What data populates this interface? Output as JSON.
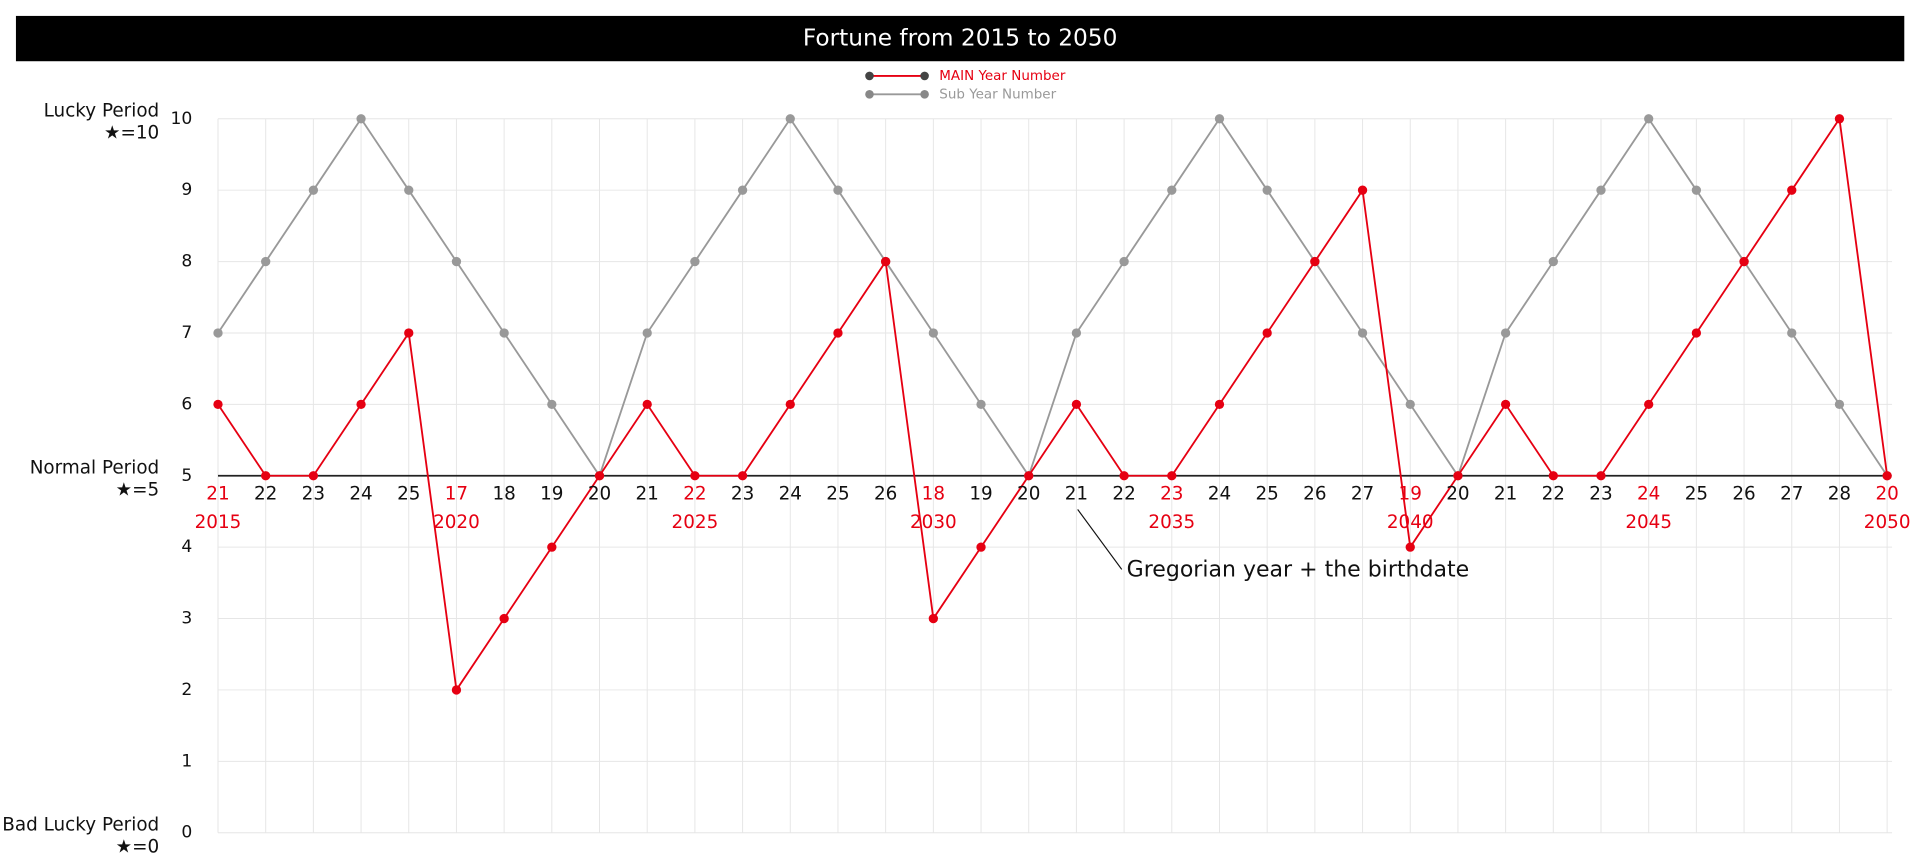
{
  "chart_data": {
    "type": "line",
    "title": "Fortune from 2015 to 2050",
    "categories": [
      "21",
      "22",
      "23",
      "24",
      "25",
      "17",
      "18",
      "19",
      "20",
      "21",
      "22",
      "23",
      "24",
      "25",
      "26",
      "18",
      "19",
      "20",
      "21",
      "22",
      "23",
      "24",
      "25",
      "26",
      "27",
      "19",
      "20",
      "21",
      "22",
      "23",
      "24",
      "25",
      "26",
      "27",
      "28",
      "20"
    ],
    "years": [
      "2015",
      null,
      null,
      null,
      null,
      "2020",
      null,
      null,
      null,
      null,
      "2025",
      null,
      null,
      null,
      null,
      "2030",
      null,
      null,
      null,
      null,
      "2035",
      null,
      null,
      null,
      null,
      "2040",
      null,
      null,
      null,
      null,
      "2045",
      null,
      null,
      null,
      null,
      "2050"
    ],
    "series": [
      {
        "name": "MAIN Year Number",
        "color": "#e60012",
        "values": [
          6,
          5,
          5,
          6,
          7,
          2,
          3,
          4,
          5,
          6,
          5,
          5,
          6,
          7,
          8,
          3,
          4,
          5,
          6,
          5,
          5,
          6,
          7,
          8,
          9,
          4,
          5,
          6,
          5,
          5,
          6,
          7,
          8,
          9,
          10,
          5
        ]
      },
      {
        "name": "Sub Year Number",
        "color": "#999999",
        "values": [
          7,
          8,
          9,
          10,
          9,
          8,
          7,
          6,
          5,
          7,
          8,
          9,
          10,
          9,
          8,
          7,
          6,
          5,
          7,
          8,
          9,
          10,
          9,
          8,
          7,
          6,
          5,
          7,
          8,
          9,
          10,
          9,
          8,
          7,
          6,
          5
        ]
      }
    ],
    "ylim": [
      0,
      10
    ],
    "yticks": [
      0,
      1,
      2,
      3,
      4,
      5,
      6,
      7,
      8,
      9,
      10
    ],
    "grid": true,
    "reference_line": 5,
    "y_annotations": [
      {
        "value": 10,
        "lines": [
          "Lucky Period",
          "★=10"
        ]
      },
      {
        "value": 5,
        "lines": [
          "Normal Period",
          "★=5"
        ]
      },
      {
        "value": 0,
        "lines": [
          "Bad Lucky Period",
          "★=0"
        ]
      }
    ],
    "annotation": "Gregorian year + the birthdate"
  }
}
